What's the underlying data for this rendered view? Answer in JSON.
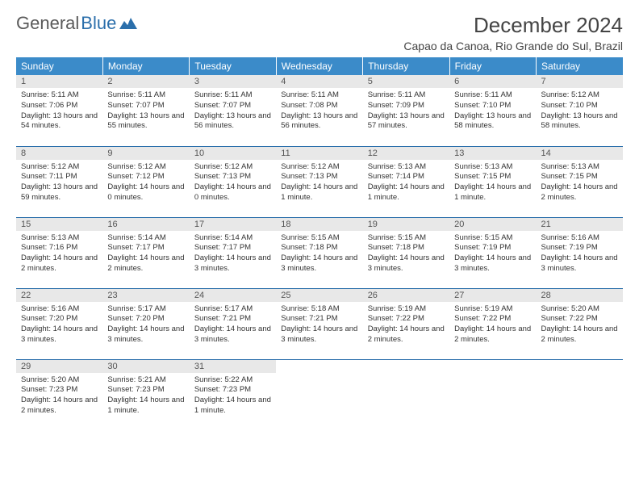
{
  "logo": {
    "text1": "General",
    "text2": "Blue"
  },
  "title": "December 2024",
  "subtitle": "Capao da Canoa, Rio Grande do Sul, Brazil",
  "colors": {
    "header_bg": "#3b8bc9",
    "header_text": "#ffffff",
    "day_num_bg": "#e8e8e8",
    "row_divider": "#2b6fab",
    "logo_gray": "#5a5a5a",
    "logo_blue": "#2b6fab"
  },
  "weekdays": [
    "Sunday",
    "Monday",
    "Tuesday",
    "Wednesday",
    "Thursday",
    "Friday",
    "Saturday"
  ],
  "days": [
    {
      "n": 1,
      "sr": "5:11 AM",
      "ss": "7:06 PM",
      "dl": "13 hours and 54 minutes."
    },
    {
      "n": 2,
      "sr": "5:11 AM",
      "ss": "7:07 PM",
      "dl": "13 hours and 55 minutes."
    },
    {
      "n": 3,
      "sr": "5:11 AM",
      "ss": "7:07 PM",
      "dl": "13 hours and 56 minutes."
    },
    {
      "n": 4,
      "sr": "5:11 AM",
      "ss": "7:08 PM",
      "dl": "13 hours and 56 minutes."
    },
    {
      "n": 5,
      "sr": "5:11 AM",
      "ss": "7:09 PM",
      "dl": "13 hours and 57 minutes."
    },
    {
      "n": 6,
      "sr": "5:11 AM",
      "ss": "7:10 PM",
      "dl": "13 hours and 58 minutes."
    },
    {
      "n": 7,
      "sr": "5:12 AM",
      "ss": "7:10 PM",
      "dl": "13 hours and 58 minutes."
    },
    {
      "n": 8,
      "sr": "5:12 AM",
      "ss": "7:11 PM",
      "dl": "13 hours and 59 minutes."
    },
    {
      "n": 9,
      "sr": "5:12 AM",
      "ss": "7:12 PM",
      "dl": "14 hours and 0 minutes."
    },
    {
      "n": 10,
      "sr": "5:12 AM",
      "ss": "7:13 PM",
      "dl": "14 hours and 0 minutes."
    },
    {
      "n": 11,
      "sr": "5:12 AM",
      "ss": "7:13 PM",
      "dl": "14 hours and 1 minute."
    },
    {
      "n": 12,
      "sr": "5:13 AM",
      "ss": "7:14 PM",
      "dl": "14 hours and 1 minute."
    },
    {
      "n": 13,
      "sr": "5:13 AM",
      "ss": "7:15 PM",
      "dl": "14 hours and 1 minute."
    },
    {
      "n": 14,
      "sr": "5:13 AM",
      "ss": "7:15 PM",
      "dl": "14 hours and 2 minutes."
    },
    {
      "n": 15,
      "sr": "5:13 AM",
      "ss": "7:16 PM",
      "dl": "14 hours and 2 minutes."
    },
    {
      "n": 16,
      "sr": "5:14 AM",
      "ss": "7:17 PM",
      "dl": "14 hours and 2 minutes."
    },
    {
      "n": 17,
      "sr": "5:14 AM",
      "ss": "7:17 PM",
      "dl": "14 hours and 3 minutes."
    },
    {
      "n": 18,
      "sr": "5:15 AM",
      "ss": "7:18 PM",
      "dl": "14 hours and 3 minutes."
    },
    {
      "n": 19,
      "sr": "5:15 AM",
      "ss": "7:18 PM",
      "dl": "14 hours and 3 minutes."
    },
    {
      "n": 20,
      "sr": "5:15 AM",
      "ss": "7:19 PM",
      "dl": "14 hours and 3 minutes."
    },
    {
      "n": 21,
      "sr": "5:16 AM",
      "ss": "7:19 PM",
      "dl": "14 hours and 3 minutes."
    },
    {
      "n": 22,
      "sr": "5:16 AM",
      "ss": "7:20 PM",
      "dl": "14 hours and 3 minutes."
    },
    {
      "n": 23,
      "sr": "5:17 AM",
      "ss": "7:20 PM",
      "dl": "14 hours and 3 minutes."
    },
    {
      "n": 24,
      "sr": "5:17 AM",
      "ss": "7:21 PM",
      "dl": "14 hours and 3 minutes."
    },
    {
      "n": 25,
      "sr": "5:18 AM",
      "ss": "7:21 PM",
      "dl": "14 hours and 3 minutes."
    },
    {
      "n": 26,
      "sr": "5:19 AM",
      "ss": "7:22 PM",
      "dl": "14 hours and 2 minutes."
    },
    {
      "n": 27,
      "sr": "5:19 AM",
      "ss": "7:22 PM",
      "dl": "14 hours and 2 minutes."
    },
    {
      "n": 28,
      "sr": "5:20 AM",
      "ss": "7:22 PM",
      "dl": "14 hours and 2 minutes."
    },
    {
      "n": 29,
      "sr": "5:20 AM",
      "ss": "7:23 PM",
      "dl": "14 hours and 2 minutes."
    },
    {
      "n": 30,
      "sr": "5:21 AM",
      "ss": "7:23 PM",
      "dl": "14 hours and 1 minute."
    },
    {
      "n": 31,
      "sr": "5:22 AM",
      "ss": "7:23 PM",
      "dl": "14 hours and 1 minute."
    }
  ],
  "labels": {
    "sunrise": "Sunrise:",
    "sunset": "Sunset:",
    "daylight": "Daylight:"
  }
}
